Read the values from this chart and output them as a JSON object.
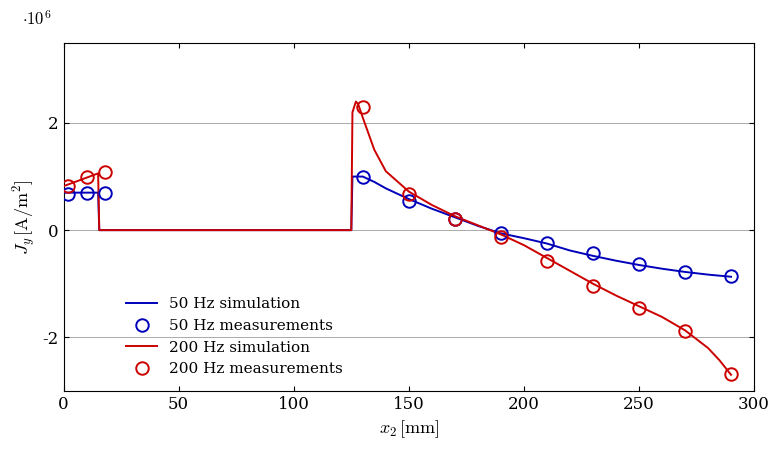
{
  "xlabel": "$x_2$ [mm]",
  "ylabel": "$J_y$ [A/m$^2$]",
  "xlim": [
    0,
    300
  ],
  "ylim": [
    -3000000.0,
    3500000.0
  ],
  "yticks": [
    -2000000.0,
    0,
    2000000.0
  ],
  "xticks": [
    0,
    50,
    100,
    150,
    200,
    250,
    300
  ],
  "blue_sim_x": [
    0,
    0.5,
    15.0,
    15.5,
    20.0,
    20.5,
    125.0,
    125.5,
    130,
    135,
    140,
    150,
    160,
    170,
    180,
    190,
    200,
    210,
    220,
    230,
    240,
    250,
    260,
    270,
    280,
    290
  ],
  "blue_sim_y": [
    700000,
    700000,
    700000,
    0,
    0,
    0,
    0,
    1000000,
    1000000,
    900000,
    780000,
    580000,
    400000,
    240000,
    80000,
    -60000,
    -150000,
    -250000,
    -380000,
    -480000,
    -570000,
    -650000,
    -720000,
    -780000,
    -830000,
    -870000
  ],
  "red_sim_x": [
    0,
    0.5,
    5,
    10,
    15.0,
    15.5,
    20.0,
    20.5,
    125.0,
    125.5,
    127,
    128,
    130,
    135,
    140,
    150,
    160,
    170,
    180,
    190,
    200,
    210,
    220,
    230,
    240,
    250,
    260,
    270,
    280,
    285,
    290
  ],
  "red_sim_y": [
    820000,
    830000,
    900000,
    980000,
    1060000,
    0,
    0,
    0,
    0,
    2200000,
    2400000,
    2350000,
    2100000,
    1500000,
    1100000,
    720000,
    470000,
    260000,
    90000,
    -80000,
    -280000,
    -520000,
    -760000,
    -1000000,
    -1220000,
    -1420000,
    -1620000,
    -1870000,
    -2200000,
    -2430000,
    -2700000
  ],
  "blue_meas_x": [
    2,
    10,
    18,
    130,
    150,
    170,
    190,
    210,
    230,
    250,
    270,
    290
  ],
  "blue_meas_y": [
    680000,
    700000,
    700000,
    1000000,
    550000,
    200000,
    -60000,
    -240000,
    -430000,
    -630000,
    -790000,
    -860000
  ],
  "red_meas_x": [
    2,
    10,
    18,
    130,
    150,
    170,
    190,
    210,
    230,
    250,
    270,
    290
  ],
  "red_meas_y": [
    820000,
    1000000,
    1080000,
    2300000,
    680000,
    210000,
    -130000,
    -570000,
    -1040000,
    -1460000,
    -1890000,
    -2680000
  ],
  "blue_color": "#0000bb",
  "red_color": "#cc0000",
  "background_color": "#ffffff",
  "grid_color": "#aaaaaa"
}
